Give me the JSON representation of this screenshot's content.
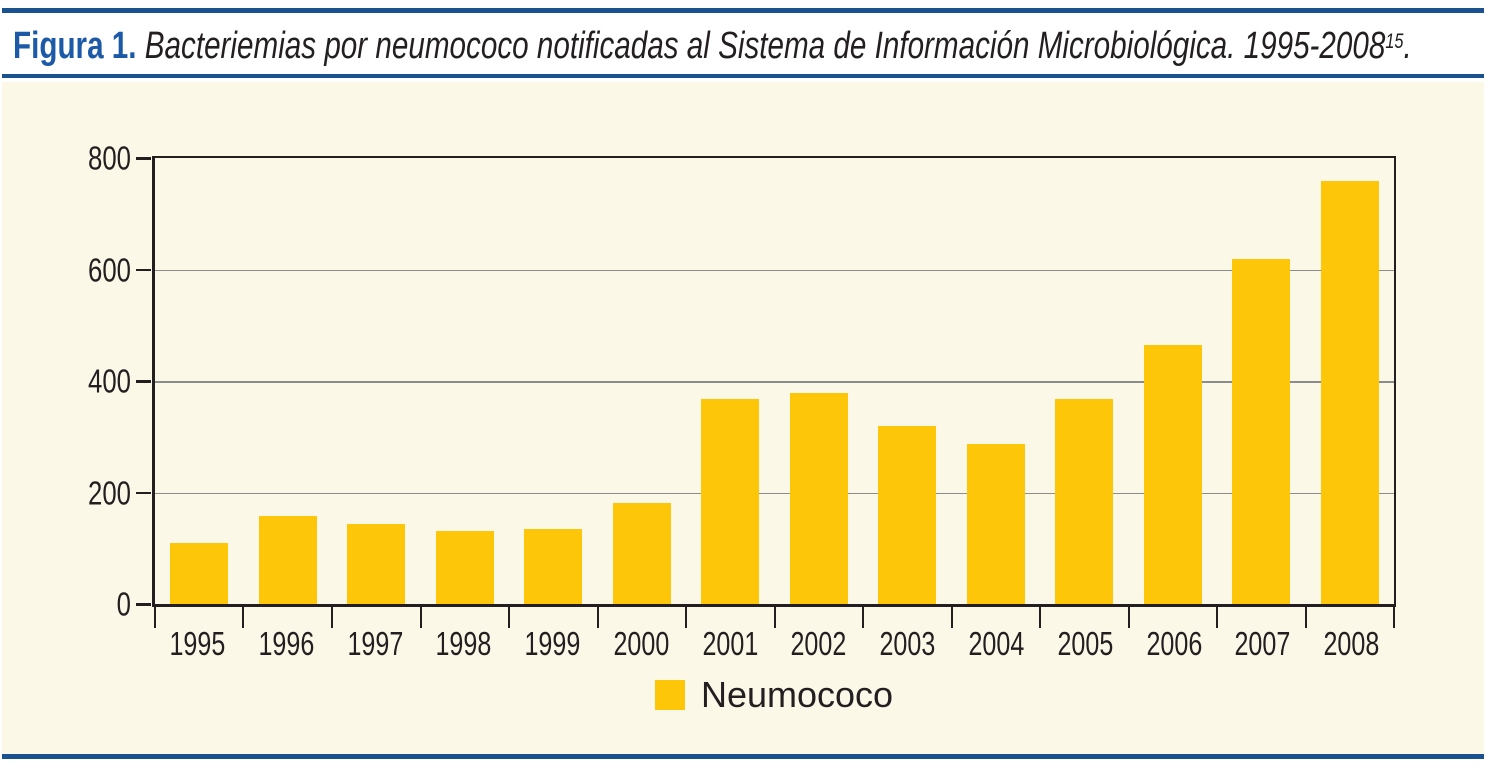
{
  "figure": {
    "label": "Figura 1.",
    "caption_italic": " Bacteriemias por neumococo notificadas al Sistema de Información Microbiológica. 1995-2008",
    "caption_superscript": "15",
    "caption_period": "."
  },
  "legend": {
    "label": "Neumococo"
  },
  "colors": {
    "bar": "#FDC608",
    "panel_background": "#FCF8E8",
    "rule_blue": "#1A518F",
    "title_blue": "#1C5AA8",
    "axis_line": "#231F20",
    "grid_line": "#8C8C8C",
    "text": "#231F20"
  },
  "chart_data": {
    "type": "bar",
    "title": "Figura 1. Bacteriemias por neumococo notificadas al Sistema de Información Microbiológica. 1995-2008 (15)",
    "categories": [
      "1995",
      "1996",
      "1997",
      "1998",
      "1999",
      "2000",
      "2001",
      "2002",
      "2003",
      "2004",
      "2005",
      "2006",
      "2007",
      "2008"
    ],
    "values": [
      110,
      157,
      144,
      131,
      134,
      181,
      367,
      379,
      320,
      287,
      367,
      465,
      618,
      758
    ],
    "series_name": "Neumococo",
    "xlabel": "",
    "ylabel": "",
    "ylim": [
      0,
      800
    ],
    "yticks": [
      0,
      200,
      400,
      600,
      800
    ],
    "grid": "horizontal",
    "legend_position": "bottom-center",
    "bar_color": "#FDC608"
  }
}
